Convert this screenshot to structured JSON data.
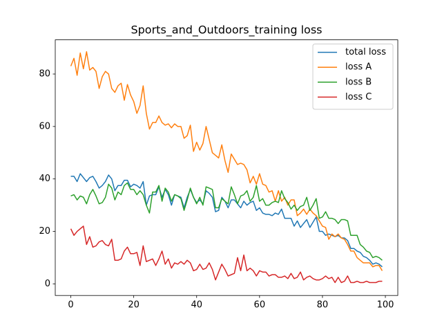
{
  "chart_data": {
    "type": "line",
    "title": "Sports_and_Outdoors_training loss",
    "x": [
      0,
      1,
      2,
      3,
      4,
      5,
      6,
      7,
      8,
      9,
      10,
      11,
      12,
      13,
      14,
      15,
      16,
      17,
      18,
      19,
      20,
      21,
      22,
      23,
      24,
      25,
      26,
      27,
      28,
      29,
      30,
      31,
      32,
      33,
      34,
      35,
      36,
      37,
      38,
      39,
      40,
      41,
      42,
      43,
      44,
      45,
      46,
      47,
      48,
      49,
      50,
      51,
      52,
      53,
      54,
      55,
      56,
      57,
      58,
      59,
      60,
      61,
      62,
      63,
      64,
      65,
      66,
      67,
      68,
      69,
      70,
      71,
      72,
      73,
      74,
      75,
      76,
      77,
      78,
      79,
      80,
      81,
      82,
      83,
      84,
      85,
      86,
      87,
      88,
      89,
      90,
      91,
      92,
      93,
      94,
      95,
      96,
      97,
      98,
      99
    ],
    "series": [
      {
        "name": "total loss",
        "color": "#1f77b4",
        "values": [
          41,
          41,
          39,
          42,
          40.5,
          39,
          40.5,
          41,
          39,
          36.5,
          37.5,
          39,
          41.5,
          40,
          35.5,
          37.5,
          37.5,
          39.5,
          39.5,
          37,
          38,
          37.5,
          36.5,
          39,
          30,
          33.5,
          34,
          34,
          37,
          33,
          36,
          34,
          30,
          34,
          33.5,
          33,
          29,
          33,
          36,
          33,
          31,
          32,
          30.5,
          35.5,
          34.5,
          33,
          27.5,
          28,
          33,
          31.5,
          29,
          32,
          32,
          30.5,
          29,
          31.5,
          30,
          31,
          31.5,
          28,
          29,
          27,
          26.5,
          26.5,
          26,
          27,
          26.5,
          28.5,
          25,
          25,
          25,
          22,
          24,
          21.5,
          23,
          24.5,
          21.5,
          23.5,
          25.5,
          20,
          20,
          18.5,
          19,
          18.5,
          18,
          18.5,
          17.5,
          17.5,
          16.5,
          13.5,
          13.5,
          12.5,
          12,
          10.5,
          10,
          9,
          7.5,
          8,
          7.5,
          6.5
        ]
      },
      {
        "name": "loss A",
        "color": "#ff7f0e",
        "values": [
          83,
          86,
          79.5,
          88,
          82,
          88.5,
          81.5,
          82.5,
          81,
          74.5,
          79,
          81,
          80,
          74.5,
          73,
          75.5,
          76.5,
          70,
          76,
          72,
          69.5,
          65,
          68,
          75.5,
          65,
          59,
          61.5,
          61.5,
          64,
          61.5,
          60.5,
          61,
          59.5,
          61,
          60,
          60,
          55.5,
          56.5,
          60.5,
          50.5,
          54,
          51,
          53.5,
          60,
          55,
          50,
          49,
          48,
          53,
          47,
          42.5,
          49.5,
          47.5,
          45.5,
          46,
          45.5,
          43.5,
          38.5,
          41,
          38,
          42,
          38,
          37.5,
          35,
          35.5,
          31.5,
          35.5,
          31.5,
          33,
          30,
          32,
          32,
          26,
          27,
          28.5,
          26.5,
          28.5,
          27,
          26,
          24,
          22,
          21.5,
          17,
          19,
          18,
          19,
          17.5,
          17,
          15,
          12.5,
          12.5,
          10,
          9,
          8,
          8,
          8,
          6.5,
          7,
          7,
          5
        ]
      },
      {
        "name": "loss B",
        "color": "#2ca02c",
        "values": [
          33.5,
          34,
          32,
          33.5,
          33,
          30.5,
          34,
          36,
          33.5,
          30.5,
          31,
          33,
          38,
          36.5,
          32,
          35,
          34,
          37.5,
          38.5,
          36,
          36,
          34,
          35.5,
          34,
          30,
          27,
          35,
          35,
          37.5,
          31.5,
          36.5,
          35,
          31.5,
          34,
          33.5,
          32.5,
          28,
          32,
          36.5,
          33,
          30.5,
          33,
          30,
          37,
          36.5,
          36,
          29,
          29,
          32.5,
          31.5,
          30.5,
          37,
          34,
          30.5,
          33.5,
          34,
          35.5,
          31.5,
          33,
          37.5,
          31.5,
          32.5,
          30,
          30,
          31,
          31.5,
          31,
          35.5,
          32.5,
          31,
          28.5,
          30,
          28,
          29.5,
          30,
          33,
          28,
          30,
          32.5,
          25,
          25.5,
          27.5,
          25,
          25,
          24.5,
          23,
          24.5,
          24.5,
          24,
          18.5,
          18.5,
          18.5,
          15,
          14,
          12.5,
          12,
          10,
          10.5,
          10,
          9
        ]
      },
      {
        "name": "loss C",
        "color": "#d62728",
        "values": [
          21,
          18.5,
          20,
          21,
          22,
          15,
          18,
          14,
          14.5,
          16,
          16.5,
          15,
          14.5,
          17,
          9,
          9,
          9.5,
          12.5,
          14,
          11.5,
          11.5,
          12,
          7,
          14.5,
          8.5,
          9,
          9.5,
          7,
          9.5,
          12.5,
          7.5,
          9.5,
          6,
          8,
          7.5,
          8.5,
          7.5,
          9,
          8,
          5,
          5.5,
          7.5,
          5.5,
          6,
          8,
          5.5,
          1.5,
          4.5,
          7.5,
          5.5,
          3,
          3.5,
          4,
          10,
          5,
          11,
          5,
          6,
          5,
          3,
          5,
          4.5,
          4.5,
          3,
          3.5,
          3.5,
          2.5,
          2.5,
          3,
          2,
          4,
          2,
          2.5,
          4.5,
          1.5,
          2.5,
          3,
          2,
          1.5,
          1.5,
          2,
          3,
          2,
          2.5,
          0.5,
          2.5,
          0.5,
          1,
          3,
          0.5,
          0.5,
          1,
          0.5,
          0.5,
          1,
          0.5,
          0.5,
          0.5,
          1,
          1
        ]
      }
    ],
    "xlim": [
      -4.95,
      103.95
    ],
    "xticks": [
      0,
      20,
      40,
      60,
      80,
      100
    ],
    "ylim": [
      -4.43,
      93.03
    ],
    "yticks": [
      0,
      20,
      40,
      60,
      80
    ],
    "grid": false,
    "legend": "upper-right"
  }
}
